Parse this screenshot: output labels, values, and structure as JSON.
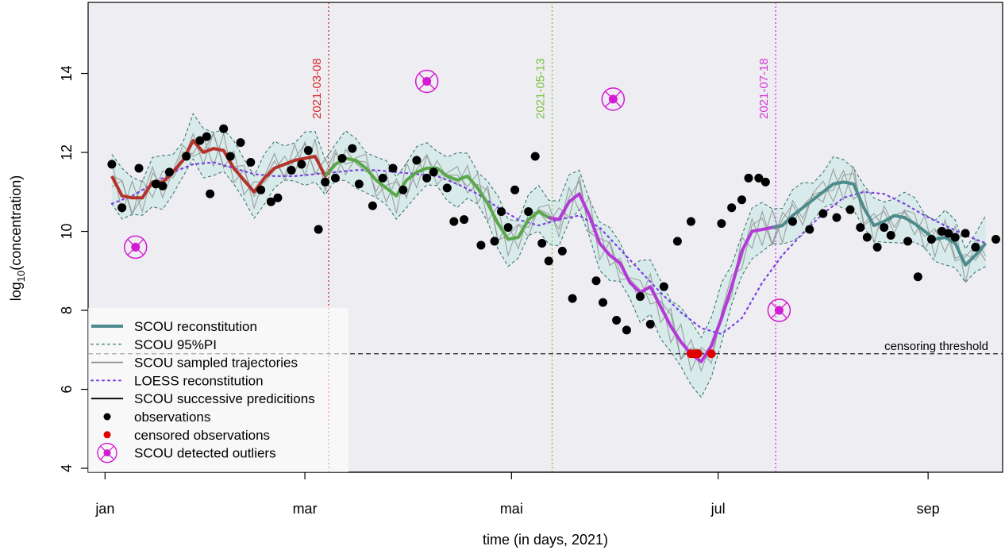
{
  "chart_data": {
    "type": "line",
    "xlabel": "time (in days, 2021)",
    "ylabel_main": "log",
    "ylabel_sub": "10",
    "ylabel_rest": "(concentration)",
    "xlim": [
      -5,
      265
    ],
    "ylim": [
      3.9,
      15.8
    ],
    "x_ticks": [
      {
        "day": 0,
        "label": "jan"
      },
      {
        "day": 59,
        "label": "mar"
      },
      {
        "day": 120,
        "label": "mai"
      },
      {
        "day": 181,
        "label": "jul"
      },
      {
        "day": 243,
        "label": "sep"
      }
    ],
    "y_ticks": [
      4,
      6,
      8,
      10,
      12,
      14
    ],
    "threshold": {
      "value": 6.9,
      "label": "censoring threshold"
    },
    "vlines": [
      {
        "day": 66,
        "label": "2021-03-08",
        "color": "#d62728"
      },
      {
        "day": 132,
        "label": "2021-05-13",
        "color": "#7cc242"
      },
      {
        "day": 198,
        "label": "2021-07-18",
        "color": "#d633d6"
      }
    ],
    "colors": {
      "panel_bg": "#eeedf1",
      "band_fill": "#d8eaea",
      "band_edge": "#2f6e6b",
      "reconstitution": "#4d8c8c",
      "segment1": "#b5332a",
      "segment2": "#5aa84a",
      "segment3": "#b43ad6",
      "loess": "#7b3fe4",
      "trajectories": "#8c8c8c",
      "observations": "#000000",
      "censored": "#e00000",
      "outliers": "#d41ad4"
    },
    "legend": [
      {
        "label": "SCOU reconstitution",
        "kind": "thick-line",
        "color": "#4d8c8c"
      },
      {
        "label": "SCOU 95%PI",
        "kind": "dotted-line",
        "color": "#6aa0a0"
      },
      {
        "label": "SCOU sampled trajectories",
        "kind": "line",
        "color": "#8c8c8c"
      },
      {
        "label": "LOESS reconstitution",
        "kind": "dotted-line",
        "color": "#7b3fe4"
      },
      {
        "label": "SCOU successive predicitions",
        "kind": "line",
        "color": "#000000"
      },
      {
        "label": "observations",
        "kind": "point",
        "color": "#000000"
      },
      {
        "label": "censored observations",
        "kind": "point",
        "color": "#e00000"
      },
      {
        "label": "SCOU detected outliers",
        "kind": "outlier",
        "color": "#d41ad4"
      }
    ],
    "legend_position": "bottom-left",
    "series": [
      {
        "role": "reconstitution",
        "x": [
          2,
          5,
          8,
          11,
          14,
          17,
          20,
          23,
          26,
          29,
          32,
          35,
          38,
          41,
          44,
          47,
          50,
          53,
          56,
          59,
          62,
          65,
          68,
          71,
          74,
          77,
          80,
          83,
          86,
          89,
          92,
          95,
          98,
          101,
          104,
          107,
          110,
          113,
          116,
          119,
          122,
          125,
          128,
          131,
          134,
          137,
          140,
          143,
          146,
          149,
          152,
          155,
          158,
          161,
          164,
          167,
          170,
          173,
          176,
          179,
          182,
          185,
          188,
          191,
          194,
          197,
          200,
          203,
          206,
          209,
          212,
          215,
          218,
          221,
          224,
          227,
          230,
          233,
          236,
          239,
          242,
          245,
          248,
          251,
          254,
          257,
          260
        ],
        "y": [
          11.4,
          10.9,
          10.85,
          10.85,
          11.25,
          11.25,
          11.5,
          11.8,
          12.3,
          12.0,
          12.1,
          12.05,
          11.6,
          11.3,
          11.0,
          11.35,
          11.6,
          11.7,
          11.8,
          11.85,
          11.9,
          11.4,
          11.7,
          11.85,
          11.8,
          11.6,
          11.3,
          11.1,
          10.9,
          11.3,
          11.5,
          11.6,
          11.6,
          11.4,
          11.3,
          11.4,
          11.1,
          10.7,
          10.2,
          9.8,
          9.85,
          10.3,
          10.5,
          10.35,
          10.3,
          10.75,
          10.95,
          10.4,
          9.7,
          9.4,
          9.2,
          8.7,
          8.45,
          8.6,
          8.1,
          7.6,
          7.2,
          6.9,
          6.7,
          7.1,
          7.8,
          8.6,
          9.5,
          10.0,
          10.05,
          10.1,
          10.15,
          10.4,
          10.6,
          10.8,
          11.0,
          11.2,
          11.25,
          11.2,
          10.6,
          10.15,
          10.25,
          10.4,
          10.35,
          10.2,
          10.0,
          9.8,
          9.85,
          9.7,
          9.15,
          9.4,
          9.7
        ]
      },
      {
        "role": "loess",
        "x": [
          2,
          8,
          14,
          20,
          26,
          32,
          38,
          44,
          50,
          56,
          62,
          68,
          74,
          80,
          86,
          92,
          98,
          104,
          110,
          116,
          122,
          128,
          134,
          140,
          146,
          152,
          158,
          164,
          170,
          176,
          182,
          188,
          194,
          200,
          206,
          212,
          218,
          224,
          230,
          236,
          242,
          248,
          254,
          260
        ],
        "y": [
          10.7,
          10.9,
          11.2,
          11.5,
          11.7,
          11.75,
          11.6,
          11.45,
          11.4,
          11.4,
          11.45,
          11.5,
          11.55,
          11.55,
          11.5,
          11.45,
          11.4,
          11.2,
          10.95,
          10.6,
          10.3,
          10.15,
          10.3,
          10.4,
          10.1,
          9.55,
          9.0,
          8.45,
          7.95,
          7.55,
          7.4,
          7.8,
          8.7,
          9.4,
          9.95,
          10.45,
          10.85,
          11.0,
          10.95,
          10.7,
          10.4,
          10.15,
          9.9,
          9.7
        ]
      }
    ],
    "observations": {
      "x": [
        2,
        5,
        10,
        15,
        17,
        19,
        24,
        28,
        30,
        31,
        35,
        37,
        40,
        43,
        46,
        49,
        51,
        55,
        58,
        60,
        63,
        65,
        68,
        70,
        73,
        75,
        79,
        82,
        85,
        88,
        92,
        95,
        97,
        101,
        103,
        106,
        111,
        115,
        117,
        119,
        121,
        125,
        127,
        129,
        131,
        135,
        138,
        145,
        147,
        151,
        154,
        158,
        161,
        165,
        169,
        173,
        182,
        185,
        188,
        190,
        193,
        195,
        203,
        208,
        212,
        216,
        220,
        223,
        225,
        228,
        230,
        232,
        237,
        240,
        244,
        247,
        249,
        251,
        254,
        257,
        263
      ],
      "y": [
        11.7,
        10.6,
        11.6,
        11.2,
        11.15,
        11.5,
        11.9,
        12.3,
        12.4,
        10.95,
        12.6,
        11.9,
        12.25,
        11.75,
        11.05,
        10.75,
        10.85,
        11.55,
        11.7,
        12.05,
        10.05,
        11.25,
        11.35,
        11.85,
        12.1,
        11.2,
        10.65,
        11.35,
        11.6,
        11.05,
        11.8,
        11.35,
        11.5,
        11.1,
        10.25,
        10.3,
        9.65,
        9.75,
        10.5,
        10.1,
        11.05,
        10.5,
        11.9,
        9.7,
        9.25,
        9.5,
        8.3,
        8.75,
        8.2,
        7.75,
        7.5,
        8.35,
        7.65,
        8.6,
        9.75,
        10.25,
        10.2,
        10.6,
        10.8,
        11.35,
        11.35,
        11.25,
        10.25,
        10.05,
        10.45,
        10.35,
        10.55,
        10.1,
        9.85,
        9.6,
        10.1,
        9.9,
        9.75,
        8.85,
        9.8,
        10.0,
        9.95,
        9.85,
        9.95,
        9.6,
        9.8
      ]
    },
    "censored": {
      "x": [
        173,
        174,
        175,
        179
      ],
      "y": [
        6.9,
        6.9,
        6.9,
        6.9
      ]
    },
    "outliers": {
      "x": [
        9,
        95,
        150,
        199
      ],
      "y": [
        9.6,
        13.8,
        13.35,
        8.0
      ]
    }
  }
}
